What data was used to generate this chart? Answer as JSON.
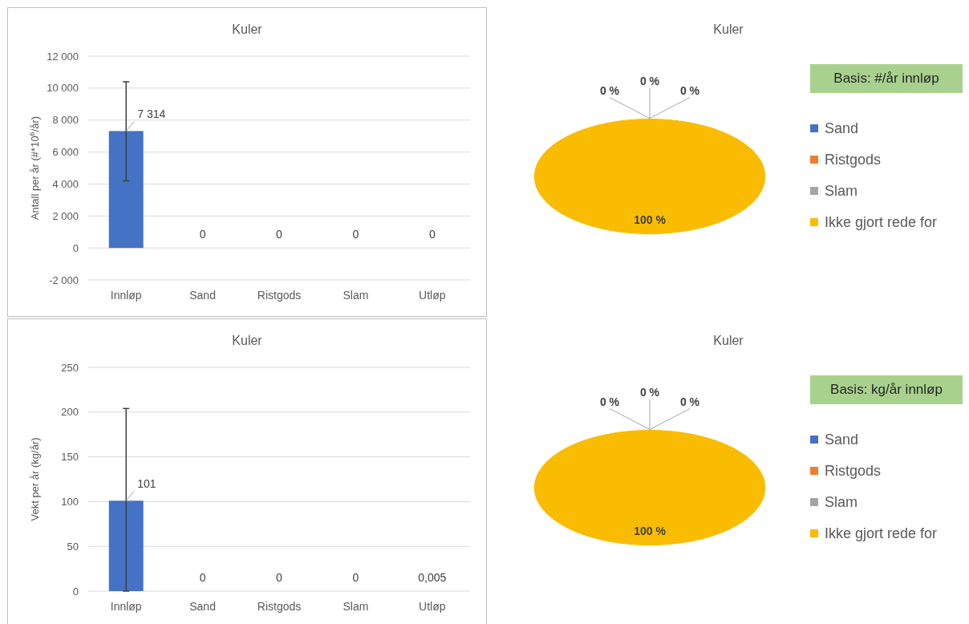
{
  "chart_data": [
    {
      "type": "bar",
      "title": "Kuler",
      "ylabel": "Antall per år (#*10$^{6}$/år)",
      "categories": [
        "Innløp",
        "Sand",
        "Ristgods",
        "Slam",
        "Utløp"
      ],
      "values": [
        7314,
        0,
        0,
        0,
        0
      ],
      "color": "#4472c4",
      "errors": [
        [
          4200,
          10400
        ],
        null,
        null,
        null,
        null
      ],
      "value_labels": [
        "7 314",
        "0",
        "0",
        "0",
        "0"
      ],
      "ylim": [
        -2000,
        12000
      ],
      "yticks": [
        {
          "value": -2000,
          "label": "-2 000"
        },
        0,
        {
          "value": 2000,
          "label": "2 000"
        },
        {
          "value": 4000,
          "label": "4 000"
        },
        {
          "value": 6000,
          "label": "6 000"
        },
        {
          "value": 8000,
          "label": "8 000"
        },
        {
          "value": 10000,
          "label": "10 000"
        },
        {
          "value": 12000,
          "label": "12 000"
        }
      ],
      "grid": "y"
    },
    {
      "type": "pie",
      "title": "Kuler",
      "categories": [
        "Sand",
        "Ristgods",
        "Slam",
        "Ikke gjort rede for"
      ],
      "values": [
        0,
        0,
        0,
        100
      ],
      "colors": [
        "#4472c4",
        "#ed7d31",
        "#a5a5a5",
        "#f9bc00"
      ],
      "value_labels": [
        "0 %",
        "0 %",
        "0 %",
        "100 %"
      ],
      "annotations": [
        "Basis: #/år innløp"
      ],
      "legend": "right"
    },
    {
      "type": "bar",
      "title": "Kuler",
      "ylabel": "Vekt per år (kg/år)",
      "categories": [
        "Innløp",
        "Sand",
        "Ristgods",
        "Slam",
        "Utløp"
      ],
      "values": [
        101,
        0,
        0,
        0,
        0.005
      ],
      "color": "#4472c4",
      "errors": [
        [
          0,
          204
        ],
        null,
        null,
        null,
        null
      ],
      "value_labels": [
        "101",
        "0",
        "0",
        "0",
        "0,005"
      ],
      "ylim": [
        0,
        250
      ],
      "yticks": [
        0,
        50,
        100,
        150,
        200,
        250
      ],
      "grid": "y"
    },
    {
      "type": "pie",
      "title": "Kuler",
      "categories": [
        "Sand",
        "Ristgods",
        "Slam",
        "Ikke gjort rede for"
      ],
      "values": [
        0,
        0,
        0,
        100
      ],
      "colors": [
        "#4472c4",
        "#ed7d31",
        "#a5a5a5",
        "#f9bc00"
      ],
      "value_labels": [
        "0 %",
        "0 %",
        "0 %",
        "100 %"
      ],
      "annotations": [
        "Basis: kg/år innløp"
      ],
      "legend": "right"
    }
  ]
}
